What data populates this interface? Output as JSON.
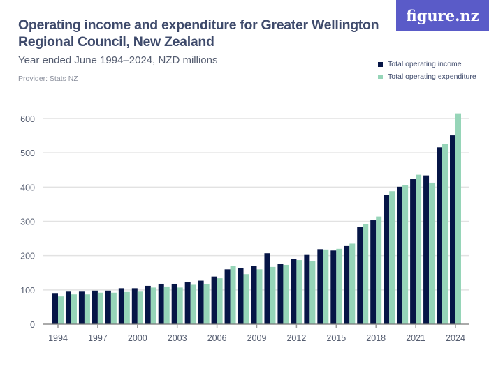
{
  "header": {
    "logo": "figure.nz",
    "provider": "Provider: Stats NZ"
  },
  "colors": {
    "income": "#061546",
    "expenditure": "#96d5b8",
    "grid": "#e2e2e2"
  },
  "chart_data": {
    "type": "bar",
    "title": "Operating income and expenditure for Greater Wellington Regional Council, New Zealand",
    "subtitle": "Year ended June 1994–2024, NZD millions",
    "xlabel": "",
    "ylabel": "",
    "ylim": [
      0,
      600
    ],
    "yticks": [
      0,
      100,
      200,
      300,
      400,
      500,
      600
    ],
    "xticks": [
      "1994",
      "1997",
      "2000",
      "2003",
      "2006",
      "2009",
      "2012",
      "2015",
      "2018",
      "2021",
      "2024"
    ],
    "legend_position": "top-right",
    "categories": [
      "1994",
      "1995",
      "1996",
      "1997",
      "1998",
      "1999",
      "2000",
      "2001",
      "2002",
      "2003",
      "2004",
      "2005",
      "2006",
      "2007",
      "2008",
      "2009",
      "2010",
      "2011",
      "2012",
      "2013",
      "2014",
      "2015",
      "2016",
      "2017",
      "2018",
      "2019",
      "2020",
      "2021",
      "2022",
      "2023",
      "2024"
    ],
    "series": [
      {
        "name": "Total operating income",
        "values": [
          89,
          95,
          95,
          98,
          98,
          105,
          105,
          112,
          118,
          118,
          122,
          127,
          139,
          160,
          163,
          170,
          207,
          175,
          190,
          202,
          219,
          215,
          228,
          283,
          303,
          378,
          401,
          423,
          434,
          516,
          551
        ]
      },
      {
        "name": "Total operating expenditure",
        "values": [
          81,
          87,
          87,
          92,
          92,
          94,
          95,
          107,
          110,
          107,
          115,
          118,
          134,
          170,
          146,
          160,
          167,
          173,
          187,
          185,
          218,
          220,
          235,
          292,
          314,
          388,
          405,
          436,
          413,
          526,
          615
        ]
      }
    ]
  }
}
